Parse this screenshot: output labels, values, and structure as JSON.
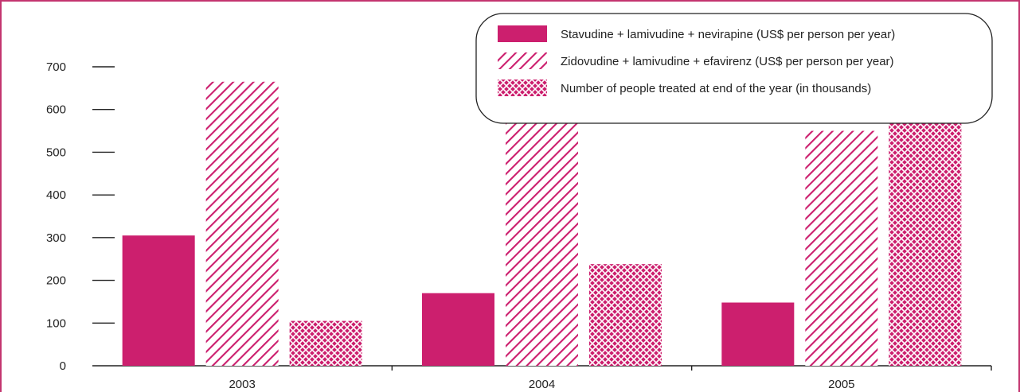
{
  "colors": {
    "frame": "#c3346f",
    "bar": "#cc1f6e",
    "axis": "#222222",
    "text": "#222222"
  },
  "chart_data": {
    "type": "bar",
    "title": "",
    "xlabel": "",
    "ylabel": "",
    "ylim": [
      0,
      700
    ],
    "yticks": [
      "0",
      "100",
      "200",
      "300",
      "400",
      "500",
      "600",
      "700"
    ],
    "grid": false,
    "legend_position": "top-right",
    "categories": [
      "2003",
      "2004",
      "2005"
    ],
    "series": [
      {
        "name": "Stavudine + lamivudine + nevirapine (US$ per person per year)",
        "pattern": "solid",
        "values": [
          305,
          170,
          148
        ]
      },
      {
        "name": "Zidovudine + lamivudine + efavirenz (US$ per person per year)",
        "pattern": "diagonal-hatch",
        "values": [
          665,
          600,
          550
        ]
      },
      {
        "name": "Number of people treated at end of the year (in thousands)",
        "pattern": "crosshatch",
        "values": [
          105,
          238,
          573
        ]
      }
    ]
  }
}
